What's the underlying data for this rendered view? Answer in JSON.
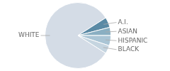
{
  "chart_data": {
    "type": "pie",
    "categories": [
      "WHITE",
      "A.I.",
      "ASIAN",
      "HISPANIC",
      "BLACK"
    ],
    "values": [
      82,
      5,
      4,
      5,
      4
    ],
    "colors": [
      "#d4dce6",
      "#5a8aa5",
      "#8aafc2",
      "#aac5d5",
      "#c5d5e0"
    ]
  }
}
